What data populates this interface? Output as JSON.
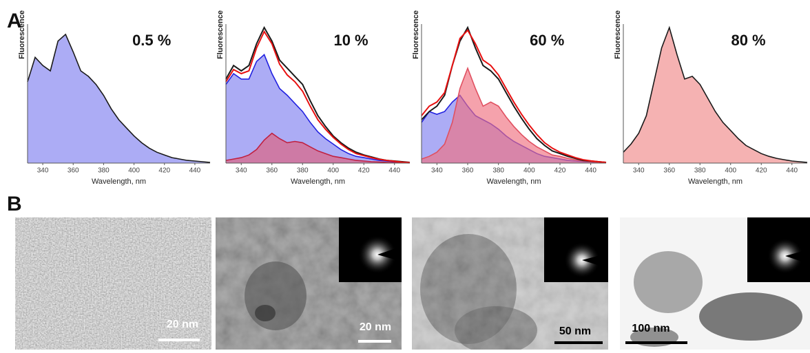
{
  "panel_labels": [
    "A",
    "B"
  ],
  "chart_data": [
    {
      "type": "area",
      "title": "0.5 %",
      "x_label": "Wavelength, nm",
      "y_label": "Fluorescence",
      "x": [
        330,
        335,
        340,
        345,
        350,
        355,
        360,
        365,
        370,
        375,
        380,
        385,
        390,
        395,
        400,
        405,
        410,
        415,
        420,
        425,
        430,
        435,
        440,
        445,
        450
      ],
      "xlim": [
        330,
        450
      ],
      "ylim": [
        0,
        100
      ],
      "xticks": [
        340,
        360,
        380,
        400,
        420,
        440
      ],
      "series": [
        {
          "color": "#1a1a1a",
          "fill": "#8080f0",
          "values": [
            60,
            78,
            72,
            68,
            90,
            95,
            82,
            68,
            64,
            58,
            50,
            40,
            32,
            26,
            20,
            15,
            11,
            8,
            6,
            4,
            3,
            2,
            1.5,
            1,
            0.5
          ]
        }
      ]
    },
    {
      "type": "area",
      "title": "10 %",
      "x_label": "Wavelength, nm",
      "y_label": "Fluorescence",
      "x": [
        330,
        335,
        340,
        345,
        350,
        355,
        360,
        365,
        370,
        375,
        380,
        385,
        390,
        395,
        400,
        405,
        410,
        415,
        420,
        425,
        430,
        435,
        440,
        445,
        450
      ],
      "xlim": [
        330,
        450
      ],
      "ylim": [
        0,
        100
      ],
      "xticks": [
        340,
        360,
        380,
        400,
        420,
        440
      ],
      "series": [
        {
          "color": "#2020e0",
          "fill": "#8080f0",
          "values": [
            58,
            66,
            62,
            62,
            75,
            80,
            66,
            55,
            50,
            44,
            38,
            30,
            23,
            18,
            14,
            10,
            7,
            5,
            4,
            3,
            2,
            1.5,
            1,
            0.5,
            0.3
          ]
        },
        {
          "color": "#c02040",
          "fill": "#e0607a",
          "values": [
            2,
            3,
            4,
            6,
            10,
            17,
            22,
            18,
            15,
            16,
            15,
            12,
            9,
            7,
            5,
            4,
            3,
            2,
            1.5,
            1,
            0.8,
            0.5,
            0.3,
            0.2,
            0.1
          ]
        },
        {
          "color": "#1a1a1a",
          "values": [
            62,
            72,
            68,
            72,
            88,
            100,
            90,
            76,
            70,
            64,
            58,
            46,
            35,
            27,
            20,
            15,
            11,
            8,
            6,
            4.5,
            3,
            2,
            1.5,
            1,
            0.5
          ]
        },
        {
          "color": "#e81010",
          "values": [
            60,
            69,
            66,
            68,
            85,
            97,
            88,
            73,
            65,
            60,
            53,
            42,
            32,
            25,
            19,
            14,
            10,
            7,
            5.5,
            4,
            2.8,
            2,
            1.3,
            0.7,
            0.4
          ]
        }
      ]
    },
    {
      "type": "area",
      "title": "60 %",
      "x_label": "Wavelength, nm",
      "y_label": "Fluorescence",
      "x": [
        330,
        335,
        340,
        345,
        350,
        355,
        360,
        365,
        370,
        375,
        380,
        385,
        390,
        395,
        400,
        405,
        410,
        415,
        420,
        425,
        430,
        435,
        440,
        445,
        450
      ],
      "xlim": [
        330,
        450
      ],
      "ylim": [
        0,
        100
      ],
      "xticks": [
        340,
        360,
        380,
        400,
        420,
        440
      ],
      "series": [
        {
          "color": "#2020e0",
          "fill": "#8080f0",
          "values": [
            30,
            38,
            36,
            38,
            45,
            50,
            42,
            35,
            32,
            29,
            25,
            20,
            16,
            13,
            10,
            7,
            5,
            4,
            3,
            2,
            1.5,
            1,
            0.7,
            0.4,
            0.2
          ]
        },
        {
          "color": "#e05060",
          "fill": "#f07080",
          "values": [
            3,
            5,
            8,
            14,
            30,
            55,
            70,
            55,
            42,
            45,
            42,
            34,
            27,
            21,
            16,
            12,
            9,
            6,
            5,
            3.5,
            2.5,
            1.5,
            1,
            0.6,
            0.3
          ]
        },
        {
          "color": "#1a1a1a",
          "values": [
            32,
            38,
            42,
            50,
            72,
            90,
            100,
            85,
            72,
            68,
            62,
            52,
            42,
            33,
            25,
            18,
            13,
            9,
            7,
            5,
            3.5,
            2,
            1.5,
            1,
            0.5
          ]
        },
        {
          "color": "#e81010",
          "values": [
            35,
            42,
            45,
            52,
            72,
            92,
            98,
            88,
            76,
            72,
            65,
            55,
            45,
            36,
            28,
            21,
            15,
            11,
            8,
            6,
            4,
            2.5,
            1.7,
            1,
            0.5
          ]
        }
      ]
    },
    {
      "type": "area",
      "title": "80 %",
      "x_label": "Wavelength, nm",
      "y_label": "Fluorescence",
      "x": [
        330,
        335,
        340,
        345,
        350,
        355,
        360,
        365,
        370,
        375,
        380,
        385,
        390,
        395,
        400,
        405,
        410,
        415,
        420,
        425,
        430,
        435,
        440,
        445,
        450
      ],
      "xlim": [
        330,
        450
      ],
      "ylim": [
        0,
        100
      ],
      "xticks": [
        340,
        360,
        380,
        400,
        420,
        440
      ],
      "series": [
        {
          "color": "#1a1a1a",
          "fill": "#f08888",
          "values": [
            8,
            14,
            22,
            35,
            60,
            85,
            100,
            80,
            62,
            64,
            58,
            48,
            38,
            30,
            24,
            18,
            13,
            10,
            7,
            5,
            3.5,
            2.5,
            1.5,
            1,
            0.5
          ]
        }
      ]
    }
  ],
  "images": [
    {
      "scale_bar": "20 nm"
    },
    {
      "scale_bar": "20 nm"
    },
    {
      "scale_bar": "50 nm"
    },
    {
      "scale_bar": "100 nm"
    }
  ]
}
